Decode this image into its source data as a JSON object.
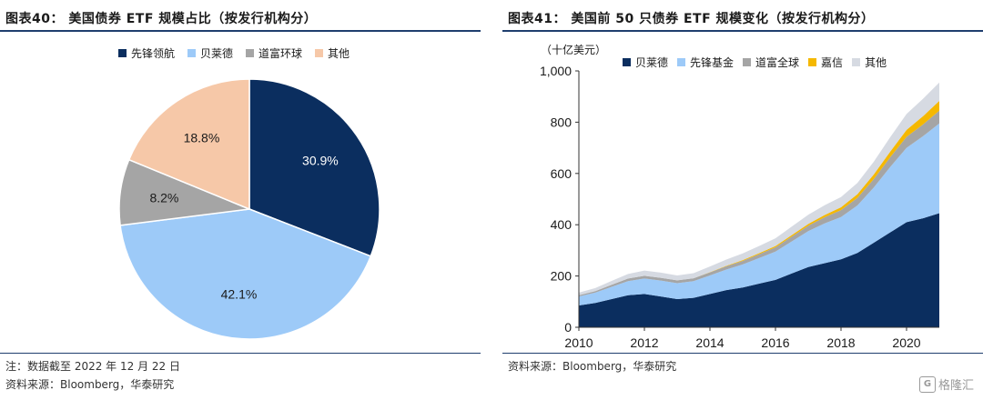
{
  "left": {
    "title": "图表40：   美国债券 ETF 规模占比（按发行机构分）",
    "note": "注：数据截至 2022 年 12 月 22 日",
    "source": "资料来源：Bloomberg，华泰研究"
  },
  "right": {
    "title": "图表41：   美国前 50 只债券 ETF 规模变化（按发行机构分）",
    "source": "资料来源：Bloomberg，华泰研究"
  },
  "watermark": {
    "text": "格隆汇",
    "icon": "G"
  },
  "chart_data": [
    {
      "type": "pie",
      "labels": [
        "先锋领航",
        "贝莱德",
        "道富环球",
        "其他"
      ],
      "values": [
        30.9,
        42.1,
        8.2,
        18.8
      ],
      "value_labels": [
        "30.9%",
        "42.1%",
        "8.2%",
        "18.8%"
      ],
      "colors": [
        "#0b2e5f",
        "#9dcaf8",
        "#a5a5a5",
        "#f6c8a8"
      ],
      "legend_position": "top"
    },
    {
      "type": "area",
      "stacked": true,
      "ylabel": "（十亿美元）",
      "x": [
        2010,
        2010.5,
        2011,
        2011.5,
        2012,
        2012.5,
        2013,
        2013.5,
        2014,
        2014.5,
        2015,
        2015.5,
        2016,
        2016.5,
        2017,
        2017.5,
        2018,
        2018.5,
        2019,
        2019.5,
        2020,
        2020.5,
        2021
      ],
      "xticks": [
        2010,
        2012,
        2014,
        2016,
        2018,
        2020
      ],
      "yticks": [
        "0",
        "200",
        "400",
        "600",
        "800",
        "1,000"
      ],
      "ylim": [
        0,
        1000
      ],
      "legend_position": "top",
      "series": [
        {
          "name": "贝莱德",
          "color": "#0b2e5f",
          "values": [
            85,
            95,
            110,
            125,
            130,
            120,
            110,
            115,
            130,
            145,
            155,
            170,
            185,
            210,
            235,
            250,
            265,
            290,
            330,
            370,
            410,
            425,
            445
          ]
        },
        {
          "name": "先锋基金",
          "color": "#9dcaf8",
          "values": [
            35,
            40,
            48,
            55,
            60,
            62,
            62,
            65,
            72,
            80,
            90,
            100,
            110,
            125,
            140,
            155,
            165,
            185,
            215,
            255,
            290,
            320,
            350
          ]
        },
        {
          "name": "道富全球",
          "color": "#a5a5a5",
          "values": [
            5,
            6,
            8,
            10,
            11,
            11,
            11,
            11,
            12,
            13,
            14,
            15,
            17,
            19,
            21,
            24,
            27,
            30,
            33,
            38,
            43,
            46,
            50
          ]
        },
        {
          "name": "嘉信",
          "color": "#f5b800",
          "values": [
            0,
            0,
            0,
            0,
            0,
            0,
            0,
            0,
            1,
            2,
            3,
            4,
            5,
            6,
            7,
            9,
            11,
            14,
            18,
            22,
            27,
            32,
            38
          ]
        },
        {
          "name": "其他",
          "color": "#d6dae2",
          "values": [
            10,
            12,
            15,
            18,
            20,
            20,
            19,
            20,
            22,
            24,
            26,
            28,
            30,
            33,
            36,
            38,
            40,
            44,
            50,
            56,
            62,
            68,
            72
          ]
        }
      ]
    }
  ]
}
